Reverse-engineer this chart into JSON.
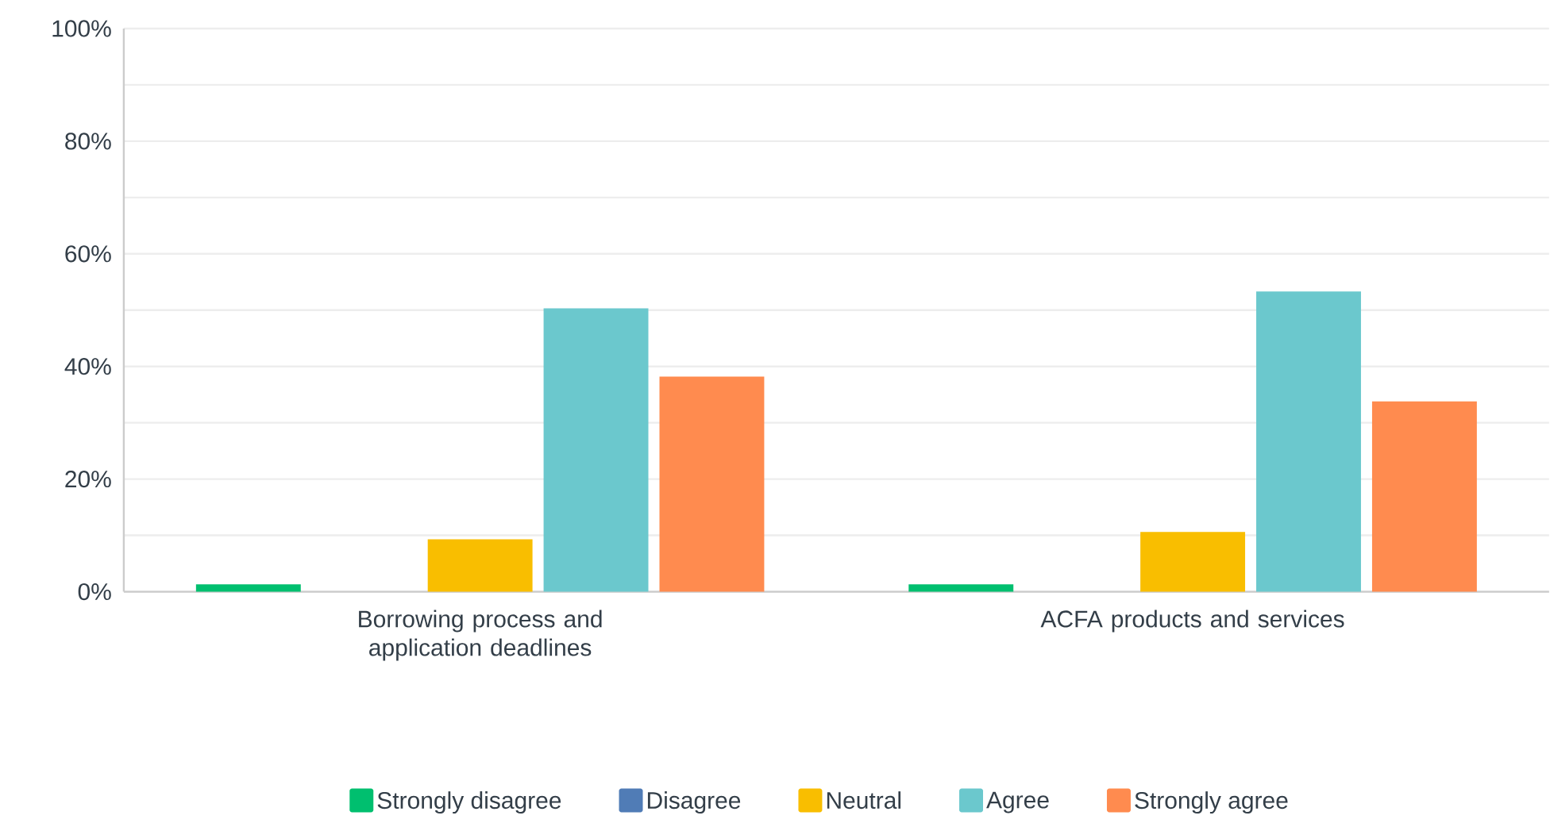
{
  "chart_data": {
    "type": "bar",
    "categories": [
      "Borrowing process and application deadlines",
      "ACFA products and services"
    ],
    "series": [
      {
        "name": "Strongly disagree",
        "color": "#00bf6f",
        "values": [
          1.3,
          1.3
        ]
      },
      {
        "name": "Disagree",
        "color": "#507cb6",
        "values": [
          0,
          0
        ]
      },
      {
        "name": "Neutral",
        "color": "#f9be00",
        "values": [
          9.3,
          10.6
        ]
      },
      {
        "name": "Agree",
        "color": "#6bc8cd",
        "values": [
          50.3,
          53.3
        ]
      },
      {
        "name": "Strongly agree",
        "color": "#ff8b4f",
        "values": [
          38.2,
          33.8
        ]
      }
    ],
    "ylim": [
      0,
      100
    ],
    "yticks": [
      {
        "value": 0,
        "label": "0%"
      },
      {
        "value": 10,
        "label": null
      },
      {
        "value": 20,
        "label": "20%"
      },
      {
        "value": 30,
        "label": null
      },
      {
        "value": 40,
        "label": "40%"
      },
      {
        "value": 50,
        "label": null
      },
      {
        "value": 60,
        "label": "60%"
      },
      {
        "value": 70,
        "label": null
      },
      {
        "value": 80,
        "label": "80%"
      },
      {
        "value": 90,
        "label": null
      },
      {
        "value": 100,
        "label": "100%"
      }
    ],
    "grid": "y",
    "legend": "bottom"
  }
}
